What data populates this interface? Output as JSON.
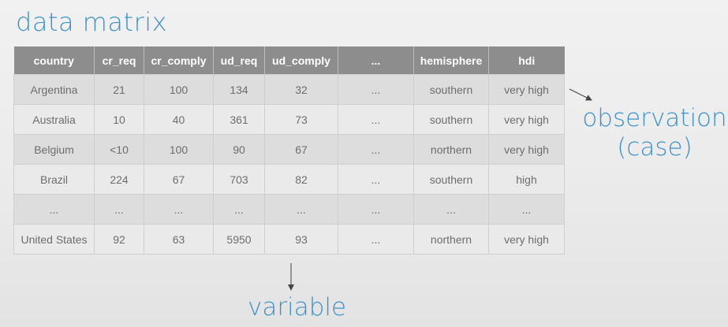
{
  "title": "data matrix",
  "table": {
    "headers": [
      "country",
      "cr_req",
      "cr_comply",
      "ud_req",
      "ud_comply",
      "...",
      "hemisphere",
      "hdi"
    ],
    "rows": [
      [
        "Argentina",
        "21",
        "100",
        "134",
        "32",
        "...",
        "southern",
        "very high"
      ],
      [
        "Australia",
        "10",
        "40",
        "361",
        "73",
        "...",
        "southern",
        "very high"
      ],
      [
        "Belgium",
        "<10",
        "100",
        "90",
        "67",
        "...",
        "northern",
        "very high"
      ],
      [
        "Brazil",
        "224",
        "67",
        "703",
        "82",
        "...",
        "southern",
        "high"
      ],
      [
        "...",
        "...",
        "...",
        "...",
        "...",
        "...",
        "...",
        "..."
      ],
      [
        "United States",
        "92",
        "63",
        "5950",
        "93",
        "...",
        "northern",
        "very high"
      ]
    ]
  },
  "annotations": {
    "observation_line1": "observation",
    "observation_line2": "(case)",
    "variable": "variable"
  },
  "colors": {
    "accent": "#3d93c7",
    "header_bg": "#8d8d8d",
    "row_odd": "#dddddd",
    "row_even": "#eaeaea"
  }
}
